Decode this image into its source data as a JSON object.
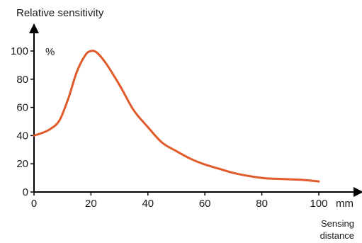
{
  "chart_data": {
    "type": "line",
    "title": "",
    "ylabel": "Relative sensitivity",
    "yunit": "%",
    "xlabel_line1": "Sensing",
    "xlabel_line2": "distance",
    "xunit": "mm",
    "xlim": [
      0,
      100
    ],
    "ylim": [
      0,
      100
    ],
    "x_ticks": [
      0,
      20,
      40,
      60,
      80,
      100
    ],
    "y_ticks": [
      0,
      20,
      40,
      60,
      80,
      100
    ],
    "grid": false,
    "colors": {
      "series": "#e05a2a",
      "axis": "#000000"
    },
    "series": [
      {
        "x": [
          0,
          3,
          6,
          9,
          12,
          15,
          18,
          20,
          22,
          25,
          30,
          35,
          40,
          45,
          50,
          55,
          60,
          65,
          70,
          75,
          80,
          83,
          90,
          95,
          100
        ],
        "y": [
          40,
          42,
          45,
          51,
          66,
          85,
          97,
          100,
          99,
          92,
          76,
          58,
          46,
          35,
          29,
          23.5,
          19.5,
          16.5,
          13.5,
          11.5,
          10,
          9.5,
          9,
          8.5,
          7.5
        ]
      }
    ]
  }
}
